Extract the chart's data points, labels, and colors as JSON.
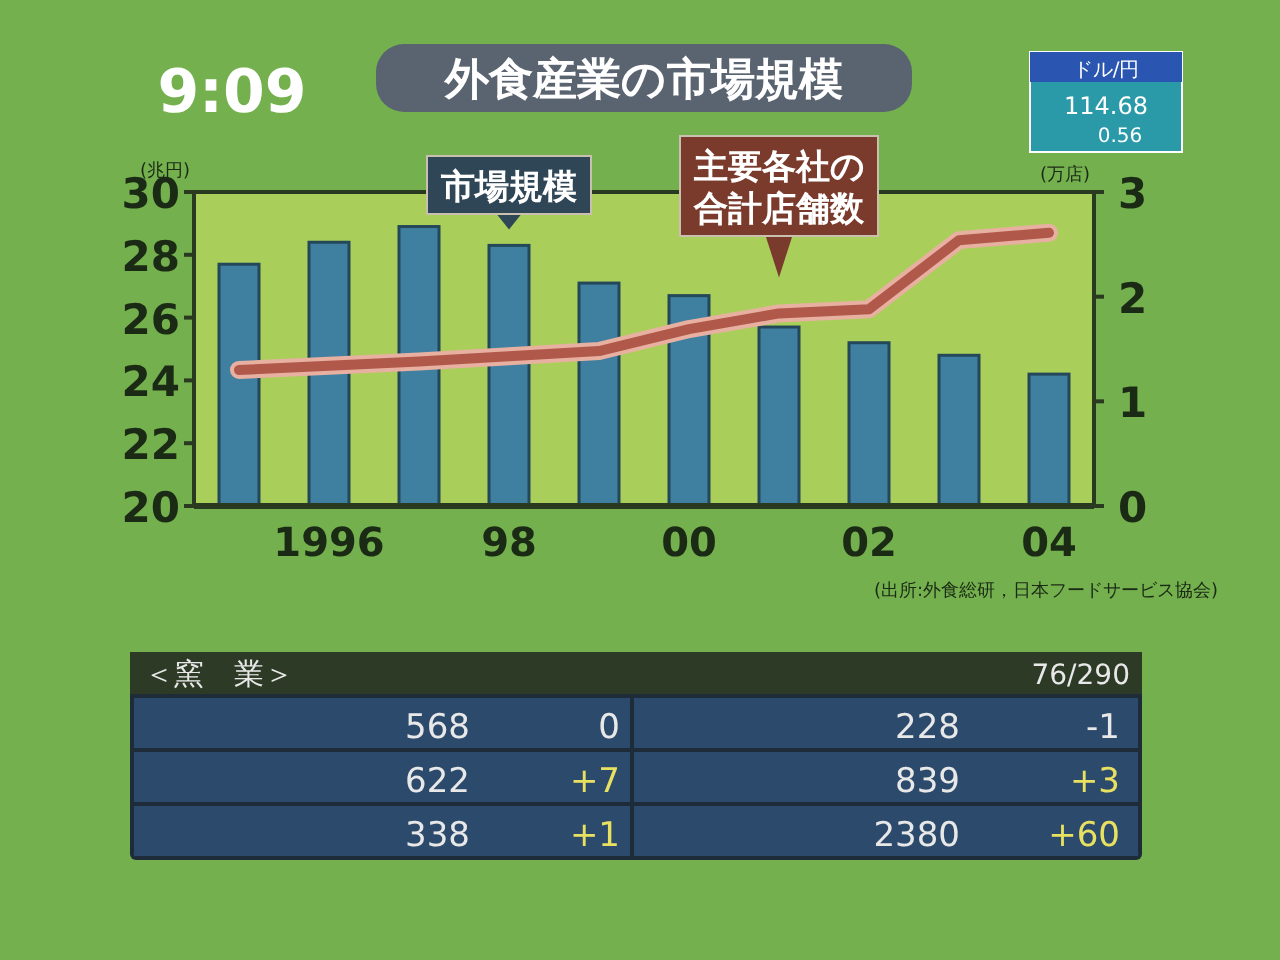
{
  "chart_data": [
    {
      "type": "bar",
      "title": "外食産業の市場規模",
      "ylabel": "(兆円)",
      "y2label": "(万店)",
      "categories": [
        null,
        "1996",
        null,
        "98",
        null,
        "00",
        null,
        "02",
        null,
        "04"
      ],
      "series": [
        {
          "name": "市場規模",
          "type": "bar",
          "color": "#3f7fa0",
          "values": [
            27.7,
            28.4,
            28.9,
            28.3,
            27.1,
            26.7,
            25.7,
            25.2,
            24.8,
            24.2
          ]
        },
        {
          "name": "主要各社の合計店舗数",
          "type": "line",
          "axis": "y2",
          "color": "#b0584a",
          "values": [
            1.3,
            1.34,
            1.38,
            1.43,
            1.48,
            1.69,
            1.84,
            1.88,
            2.54,
            2.61
          ]
        }
      ],
      "ylim": [
        20,
        30
      ],
      "yticks": [
        20,
        22,
        24,
        26,
        28,
        30
      ],
      "y2lim": [
        0,
        3
      ],
      "y2ticks": [
        0,
        1,
        2,
        3
      ],
      "grid": false,
      "annotations": [
        "(出所:外食総研，日本フードサービス協会)"
      ]
    },
    {
      "type": "other",
      "annotations": [
        "9:09",
        "ドル/円",
        "114.68",
        "0.56",
        "＜窯　業＞",
        "76/290",
        "568",
        "0",
        "228",
        "-1",
        "622",
        "+7",
        "839",
        "+3",
        "338",
        "+1",
        "2380",
        "+60"
      ]
    }
  ]
}
